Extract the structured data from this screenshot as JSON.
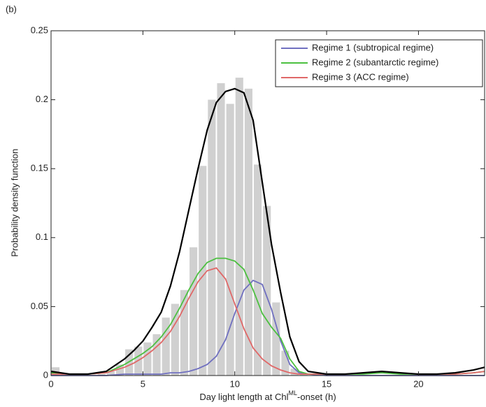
{
  "chart_data": {
    "type": "histogram_lines",
    "panel_label": "(b)",
    "xlabel_parts": [
      "Day light length at Chl",
      "ML",
      "-onset (h)"
    ],
    "ylabel": "Probability density function",
    "xlim": [
      0,
      23.6
    ],
    "ylim": [
      0,
      0.25
    ],
    "xticks": [
      0,
      5,
      10,
      15,
      20
    ],
    "yticks": [
      0,
      0.05,
      0.1,
      0.15,
      0.2,
      0.25
    ],
    "histogram": {
      "color": "#d0d0d0",
      "bins": [
        0,
        0.5,
        1,
        1.5,
        2,
        2.5,
        3,
        3.5,
        4,
        4.5,
        5,
        5.5,
        6,
        6.5,
        7,
        7.5,
        8,
        8.5,
        9,
        9.5,
        10,
        10.5,
        11,
        11.5,
        12,
        12.5,
        13,
        13.5,
        14
      ],
      "values": [
        0.006,
        0.001,
        0,
        0,
        0,
        0.001,
        0.003,
        0.008,
        0.019,
        0.021,
        0.024,
        0.03,
        0.042,
        0.052,
        0.062,
        0.093,
        0.152,
        0.2,
        0.212,
        0.197,
        0.216,
        0.208,
        0.153,
        0.123,
        0.053,
        0.018,
        0.005,
        0.001
      ]
    },
    "x": [
      0,
      1,
      2,
      3,
      4,
      4.5,
      5,
      5.5,
      6,
      6.5,
      7,
      7.5,
      8,
      8.5,
      9,
      9.5,
      10,
      10.5,
      11,
      11.5,
      12,
      12.5,
      13,
      13.5,
      14,
      15,
      16,
      17,
      18,
      19,
      20,
      21,
      22,
      23,
      23.6
    ],
    "total": {
      "color": "#000000",
      "values": [
        0.003,
        0.001,
        0.001,
        0.003,
        0.012,
        0.018,
        0.025,
        0.035,
        0.046,
        0.065,
        0.09,
        0.12,
        0.15,
        0.178,
        0.198,
        0.206,
        0.208,
        0.205,
        0.185,
        0.14,
        0.095,
        0.06,
        0.028,
        0.01,
        0.003,
        0.001,
        0.001,
        0.002,
        0.003,
        0.002,
        0.001,
        0.001,
        0.002,
        0.004,
        0.006
      ]
    },
    "series": [
      {
        "name": "Regime 1 (subtropical regime)",
        "color": "#7070c0",
        "values": [
          0,
          0,
          0,
          0,
          0.001,
          0.001,
          0.001,
          0.001,
          0.001,
          0.002,
          0.002,
          0.003,
          0.005,
          0.008,
          0.014,
          0.026,
          0.045,
          0.062,
          0.069,
          0.066,
          0.048,
          0.025,
          0.008,
          0.002,
          0.001,
          0,
          0,
          0,
          0,
          0,
          0,
          0,
          0,
          0,
          0
        ]
      },
      {
        "name": "Regime 2 (subantarctic regime)",
        "color": "#4cc040",
        "values": [
          0.002,
          0.001,
          0.001,
          0.002,
          0.008,
          0.012,
          0.016,
          0.021,
          0.028,
          0.037,
          0.049,
          0.062,
          0.074,
          0.082,
          0.085,
          0.085,
          0.083,
          0.077,
          0.062,
          0.045,
          0.035,
          0.027,
          0.012,
          0.003,
          0.001,
          0.001,
          0.001,
          0.001,
          0.002,
          0.001,
          0.001,
          0.001,
          0.001,
          0.002,
          0.003
        ]
      },
      {
        "name": "Regime 3 (ACC regime)",
        "color": "#e06868",
        "values": [
          0.001,
          0.001,
          0.001,
          0.002,
          0.006,
          0.009,
          0.013,
          0.018,
          0.024,
          0.032,
          0.043,
          0.056,
          0.068,
          0.076,
          0.078,
          0.07,
          0.052,
          0.034,
          0.02,
          0.012,
          0.007,
          0.004,
          0.002,
          0.001,
          0.001,
          0.001,
          0.001,
          0.002,
          0.003,
          0.002,
          0.001,
          0.001,
          0.001,
          0.002,
          0.003
        ]
      }
    ]
  }
}
